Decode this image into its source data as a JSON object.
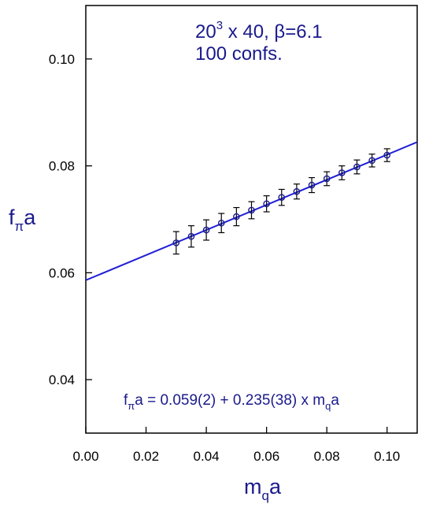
{
  "chart_data": {
    "type": "scatter",
    "xlabel": {
      "main": "m",
      "sub": "q",
      "rest": "a"
    },
    "ylabel": {
      "main": "f",
      "sub": "π",
      "rest": "a"
    },
    "xlim": [
      0.0,
      0.11
    ],
    "ylim": [
      0.03,
      0.11
    ],
    "x_ticks": [
      0.0,
      0.02,
      0.04,
      0.06,
      0.08,
      0.1
    ],
    "x_tick_labels": [
      "0.00",
      "0.02",
      "0.04",
      "0.06",
      "0.08",
      "0.10"
    ],
    "y_ticks": [
      0.04,
      0.06,
      0.08,
      0.1
    ],
    "y_tick_labels": [
      "0.04",
      "0.06",
      "0.08",
      "0.10"
    ],
    "grid": false,
    "annotation": {
      "line1_pre": "20",
      "line1_sup": "3",
      "line1_post": " x 40, β=6.1",
      "line2": "100 confs."
    },
    "formula": {
      "f": "f",
      "f_sub": "π",
      "mid": "a = 0.059(2) + 0.235(38) x m",
      "m_sub": "q",
      "end": "a"
    },
    "points": {
      "x": [
        0.03,
        0.035,
        0.04,
        0.045,
        0.05,
        0.055,
        0.06,
        0.065,
        0.07,
        0.075,
        0.08,
        0.085,
        0.09,
        0.095,
        0.1
      ],
      "y": [
        0.0656,
        0.0668,
        0.068,
        0.0693,
        0.0705,
        0.0717,
        0.0729,
        0.0741,
        0.0752,
        0.0764,
        0.0776,
        0.0787,
        0.0798,
        0.081,
        0.082
      ],
      "err": [
        0.0021,
        0.002,
        0.0019,
        0.0018,
        0.0017,
        0.0016,
        0.0015,
        0.0015,
        0.0014,
        0.0014,
        0.0013,
        0.0013,
        0.0013,
        0.0012,
        0.0012
      ]
    },
    "fit": {
      "intercept": 0.0586,
      "slope": 0.235
    },
    "colors": {
      "fit_line": "#1f1fd6",
      "points": "#1a1a8c",
      "error_bars": "#000000",
      "text": "#1a1a8c"
    }
  }
}
